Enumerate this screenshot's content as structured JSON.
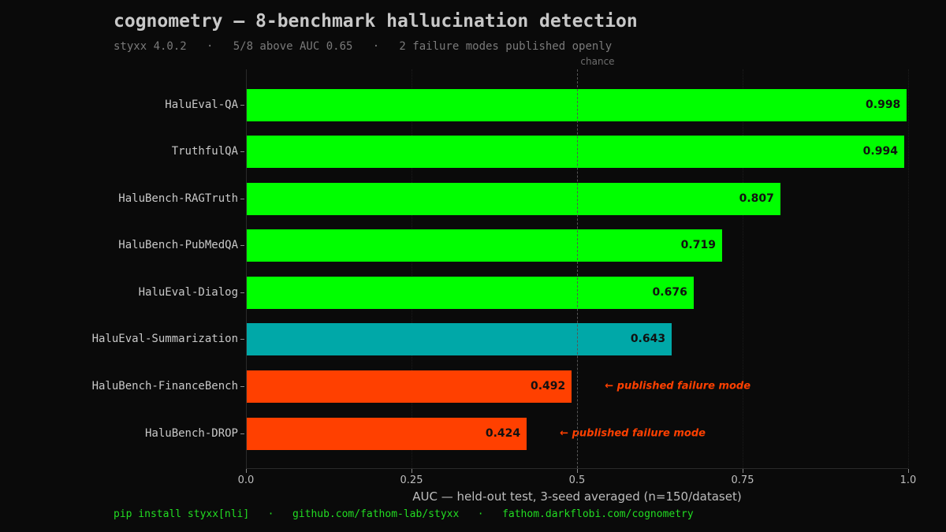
{
  "header": {
    "title": "cognometry — 8-benchmark hallucination detection",
    "subtitle": "styxx 4.0.2   ·   5/8 above AUC 0.65   ·   2 failure modes published openly"
  },
  "footer": {
    "text": "pip install styxx[nli]   ·   github.com/fathom-lab/styxx   ·   fathom.darkflobi.com/cognometry"
  },
  "colors": {
    "background": "#0a0a0a",
    "pass": "#00ff00",
    "borderline": "#00a8a8",
    "fail": "#ff4000",
    "footer": "#22dd22"
  },
  "chart_data": {
    "type": "bar",
    "orientation": "horizontal",
    "title": "cognometry — 8-benchmark hallucination detection",
    "subtitle": "styxx 4.0.2 · 5/8 above AUC 0.65 · 2 failure modes published openly",
    "xlabel": "AUC — held-out test, 3-seed averaged (n=150/dataset)",
    "ylabel": "",
    "xlim": [
      0,
      1.0
    ],
    "xticks": [
      "0.0",
      "0.25",
      "0.5",
      "0.75",
      "1.0"
    ],
    "grid": "vertical dotted",
    "reference_line": {
      "x": 0.5,
      "label": "chance",
      "style": "dashed"
    },
    "categories": [
      "HaluEval-QA",
      "TruthfulQA",
      "HaluBench-RAGTruth",
      "HaluBench-PubMedQA",
      "HaluEval-Dialog",
      "HaluEval-Summarization",
      "HaluBench-FinanceBench",
      "HaluBench-DROP"
    ],
    "values": [
      0.998,
      0.994,
      0.807,
      0.719,
      0.676,
      0.643,
      0.492,
      0.424
    ],
    "value_labels": [
      "0.998",
      "0.994",
      "0.807",
      "0.719",
      "0.676",
      "0.643",
      "0.492",
      "0.424"
    ],
    "bar_colors": [
      "#00ff00",
      "#00ff00",
      "#00ff00",
      "#00ff00",
      "#00ff00",
      "#00a8a8",
      "#ff4000",
      "#ff4000"
    ],
    "annotations": [
      {
        "category": "HaluBench-FinanceBench",
        "text": "← published failure mode"
      },
      {
        "category": "HaluBench-DROP",
        "text": "← published failure mode"
      }
    ]
  }
}
